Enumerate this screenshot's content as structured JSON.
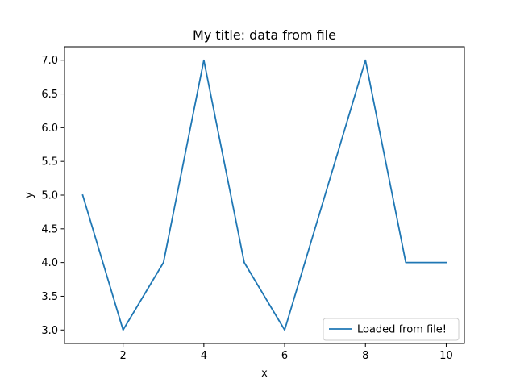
{
  "chart_data": {
    "type": "line",
    "title": "My title: data from file",
    "xlabel": "x",
    "ylabel": "y",
    "xlim": [
      0.55,
      10.45
    ],
    "ylim": [
      2.8,
      7.2
    ],
    "xticks": [
      2,
      4,
      6,
      8,
      10
    ],
    "xtick_labels": [
      "2",
      "4",
      "6",
      "8",
      "10"
    ],
    "yticks": [
      3.0,
      3.5,
      4.0,
      4.5,
      5.0,
      5.5,
      6.0,
      6.5,
      7.0
    ],
    "ytick_labels": [
      "3.0",
      "3.5",
      "4.0",
      "4.5",
      "5.0",
      "5.5",
      "6.0",
      "6.5",
      "7.0"
    ],
    "grid": false,
    "legend_position": "lower-right",
    "series": [
      {
        "name": "Loaded from file!",
        "color": "#1f77b4",
        "x": [
          1,
          2,
          3,
          4,
          5,
          6,
          7,
          8,
          9,
          10
        ],
        "y": [
          5,
          3,
          4,
          7,
          4,
          3,
          5,
          7,
          4,
          4
        ]
      }
    ]
  }
}
